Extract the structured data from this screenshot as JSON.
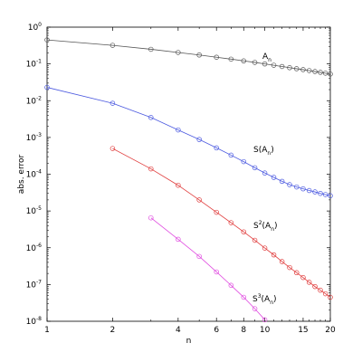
{
  "chart_data": {
    "type": "line",
    "xscale": "log",
    "yscale": "log",
    "xlim": [
      1,
      20
    ],
    "ylim": [
      1e-08,
      1
    ],
    "xlabel": "n",
    "ylabel": "abs. error",
    "grid": false,
    "legend": "none",
    "x_ticks": [
      1,
      2,
      4,
      6,
      8,
      10,
      15,
      20
    ],
    "x_tick_labels": [
      "1",
      "2",
      "4",
      "6",
      "8",
      "10",
      "15",
      "20"
    ],
    "y_ticks": [
      1e-08,
      1e-07,
      1e-06,
      1e-05,
      0.0001,
      0.001,
      0.01,
      0.1,
      1
    ],
    "y_tick_labels": [
      {
        "base": "10",
        "exp": "-8"
      },
      {
        "base": "10",
        "exp": "-7"
      },
      {
        "base": "10",
        "exp": "-6"
      },
      {
        "base": "10",
        "exp": "-5"
      },
      {
        "base": "10",
        "exp": "-4"
      },
      {
        "base": "10",
        "exp": "-3"
      },
      {
        "base": "10",
        "exp": "-2"
      },
      {
        "base": "10",
        "exp": "-1"
      },
      {
        "base": "10",
        "exp": "0"
      }
    ],
    "series": [
      {
        "label_main": "A",
        "label_sup": "",
        "label_sub": "n",
        "label_paren": false,
        "color": "#555555",
        "x": [
          1,
          2,
          3,
          4,
          5,
          6,
          7,
          8,
          9,
          10,
          11,
          12,
          13,
          14,
          15,
          16,
          17,
          18,
          19,
          20
        ],
        "y": [
          0.45,
          0.32,
          0.25,
          0.205,
          0.175,
          0.152,
          0.135,
          0.121,
          0.11,
          0.1,
          0.092,
          0.085,
          0.079,
          0.074,
          0.07,
          0.066,
          0.062,
          0.059,
          0.056,
          0.053
        ]
      },
      {
        "label_main": "S",
        "label_sup": "",
        "label_sub": "n",
        "label_paren": true,
        "color": "#4c5ae0",
        "x": [
          1,
          2,
          3,
          4,
          5,
          6,
          7,
          8,
          9,
          10,
          11,
          12,
          13,
          14,
          15,
          16,
          17,
          18,
          19,
          20
        ],
        "y": [
          0.023,
          0.0085,
          0.0035,
          0.0016,
          0.00088,
          0.00052,
          0.00033,
          0.00022,
          0.00015,
          0.000108,
          8.2e-05,
          6.4e-05,
          5.2e-05,
          4.5e-05,
          4e-05,
          3.6e-05,
          3.3e-05,
          3e-05,
          2.8e-05,
          2.6e-05
        ]
      },
      {
        "label_main": "S",
        "label_sup": "2",
        "label_sub": "n",
        "label_paren": true,
        "color": "#e03b3b",
        "x": [
          2,
          3,
          4,
          5,
          6,
          7,
          8,
          9,
          10,
          11,
          12,
          13,
          14,
          15,
          16,
          17,
          18,
          19,
          20
        ],
        "y": [
          0.0005,
          0.00014,
          5e-05,
          2e-05,
          9.2e-06,
          4.8e-06,
          2.7e-06,
          1.6e-06,
          9.8e-07,
          6.4e-07,
          4.2e-07,
          2.9e-07,
          2.1e-07,
          1.55e-07,
          1.15e-07,
          8.8e-08,
          7e-08,
          5.6e-08,
          4.5e-08
        ]
      },
      {
        "label_main": "S",
        "label_sup": "3",
        "label_sub": "n",
        "label_paren": true,
        "color": "#e04ce0",
        "x": [
          3,
          4,
          5,
          6,
          7,
          8,
          9,
          10
        ],
        "y": [
          6.5e-06,
          1.7e-06,
          5.8e-07,
          2.2e-07,
          9.5e-08,
          4.5e-08,
          2.2e-08,
          1.1e-08
        ]
      }
    ]
  }
}
